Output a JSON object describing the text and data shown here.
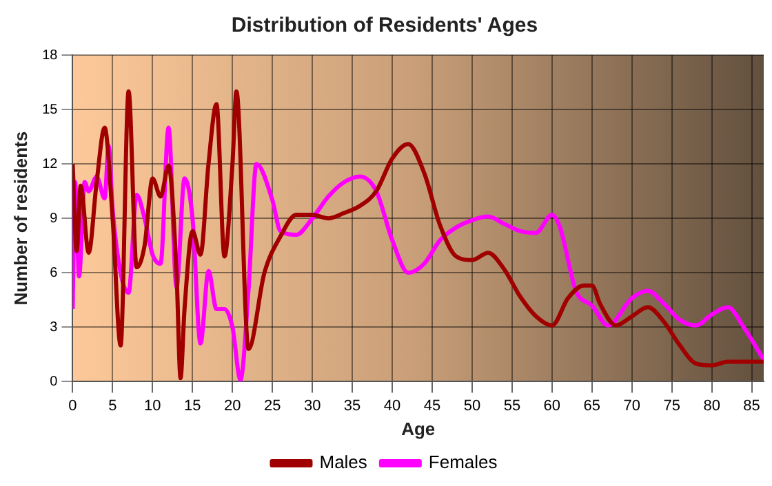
{
  "chart_data": {
    "type": "line",
    "title": "Distribution of Residents' Ages",
    "xlabel": "Age",
    "ylabel": "Number of residents",
    "xlim": [
      0,
      86.5
    ],
    "xticks": [
      0,
      5,
      10,
      15,
      20,
      25,
      30,
      35,
      40,
      45,
      50,
      55,
      60,
      65,
      70,
      75,
      80,
      85
    ],
    "ylim": [
      0,
      18
    ],
    "yticks": [
      0,
      3,
      6,
      9,
      12,
      15,
      18
    ],
    "grid": true,
    "legend": "bottom",
    "marker": "none",
    "line_style": "solid",
    "series": [
      {
        "name": "Males",
        "color": "#a00000",
        "x": [
          0,
          0.5,
          1,
          2,
          3,
          4,
          5,
          6,
          7,
          8,
          9,
          10,
          11,
          12,
          13,
          13.5,
          14,
          15,
          16,
          17,
          18,
          19,
          20,
          20.5,
          22,
          24,
          26,
          28,
          30,
          32,
          34,
          36,
          38,
          40,
          42,
          44,
          46,
          48,
          50,
          52,
          54,
          56,
          58,
          60,
          62,
          64,
          65,
          66,
          68,
          70,
          72,
          74,
          76,
          78,
          80,
          82,
          84,
          86.5
        ],
        "values": [
          12,
          7.2,
          10.8,
          7.1,
          11,
          14,
          9,
          2,
          16,
          6.3,
          7.5,
          11.2,
          10.2,
          11.9,
          6,
          0.2,
          4,
          8.3,
          7,
          12,
          15.3,
          6.9,
          12,
          16,
          1.8,
          6,
          8,
          9.2,
          9.2,
          9,
          9.3,
          9.7,
          10.5,
          12.3,
          13.1,
          11.5,
          8.6,
          6.9,
          6.7,
          7.1,
          6.2,
          4.7,
          3.6,
          3.1,
          4.6,
          5.3,
          5.3,
          4.3,
          3.1,
          3.6,
          4.1,
          3.3,
          2,
          1,
          0.9,
          1.1,
          1.1,
          1.1
        ]
      },
      {
        "name": "Females",
        "color": "#ff00ff",
        "x": [
          0,
          0.3,
          0.8,
          1.5,
          2,
          3,
          4,
          4.5,
          5,
          6,
          7,
          8,
          9,
          10,
          11,
          12,
          13,
          14,
          15,
          16,
          17,
          18,
          19,
          20,
          21,
          22,
          23,
          25,
          26,
          28,
          30,
          32,
          34,
          36,
          38,
          40,
          42,
          44,
          46,
          48,
          50,
          52,
          54,
          56,
          58,
          60,
          61,
          63,
          65,
          67,
          70,
          72,
          74,
          76,
          78,
          80,
          82,
          84,
          86.5
        ],
        "values": [
          4,
          11,
          5.8,
          11,
          10.5,
          11.3,
          10.1,
          13,
          9.5,
          6,
          4.9,
          10.3,
          9,
          7,
          6.5,
          14,
          5.2,
          11.2,
          9,
          2.1,
          6.1,
          4,
          4,
          3,
          0.1,
          5,
          12,
          10,
          8.3,
          8.1,
          9,
          10.2,
          11,
          11.3,
          10.5,
          7.8,
          6,
          6.5,
          7.8,
          8.5,
          8.9,
          9.1,
          8.7,
          8.3,
          8.2,
          9.2,
          8.5,
          5,
          4.2,
          3.1,
          4.6,
          5,
          4.3,
          3.4,
          3.1,
          3.7,
          4.1,
          3,
          1.2
        ]
      }
    ]
  }
}
